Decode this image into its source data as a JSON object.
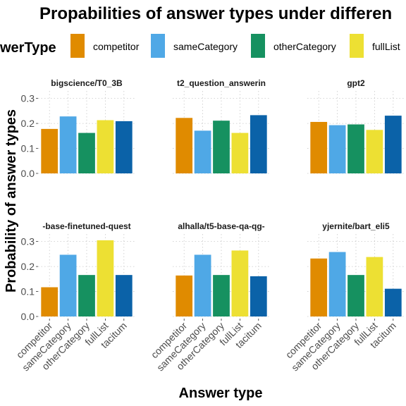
{
  "chart_data": {
    "type": "bar",
    "title": "Propabilities of answer types under differen",
    "legend": {
      "title": "werType",
      "placement": "top"
    },
    "xlabel": "Answer type",
    "ylabel": "Probability of answer types",
    "ylim": [
      0,
      0.33
    ],
    "yticks": [
      "0.0",
      "0.1",
      "0.2",
      "0.3"
    ],
    "grid": "dotted",
    "categories": [
      "competitor",
      "sameCategory",
      "otherCategory",
      "fullList",
      "tacitum"
    ],
    "legend_entries": [
      "competitor",
      "sameCategory",
      "otherCategory",
      "fullList"
    ],
    "colors": [
      "#E08B00",
      "#4FA8E6",
      "#169160",
      "#EDE033",
      "#0B62A8"
    ],
    "panels": [
      {
        "name": "bigscience/T0_3B",
        "values": [
          0.178,
          0.228,
          0.162,
          0.213,
          0.209
        ]
      },
      {
        "name": "t2_question_answerin",
        "values": [
          0.222,
          0.171,
          0.211,
          0.162,
          0.233
        ]
      },
      {
        "name": "gpt2",
        "values": [
          0.206,
          0.193,
          0.196,
          0.174,
          0.231
        ]
      },
      {
        "name": "-base-finetuned-quest",
        "values": [
          0.117,
          0.247,
          0.166,
          0.305,
          0.166
        ]
      },
      {
        "name": "alhalla/t5-base-qa-qg-",
        "values": [
          0.164,
          0.247,
          0.166,
          0.264,
          0.161
        ]
      },
      {
        "name": "yjernite/bart_eli5",
        "values": [
          0.232,
          0.258,
          0.166,
          0.238,
          0.111
        ]
      }
    ]
  }
}
